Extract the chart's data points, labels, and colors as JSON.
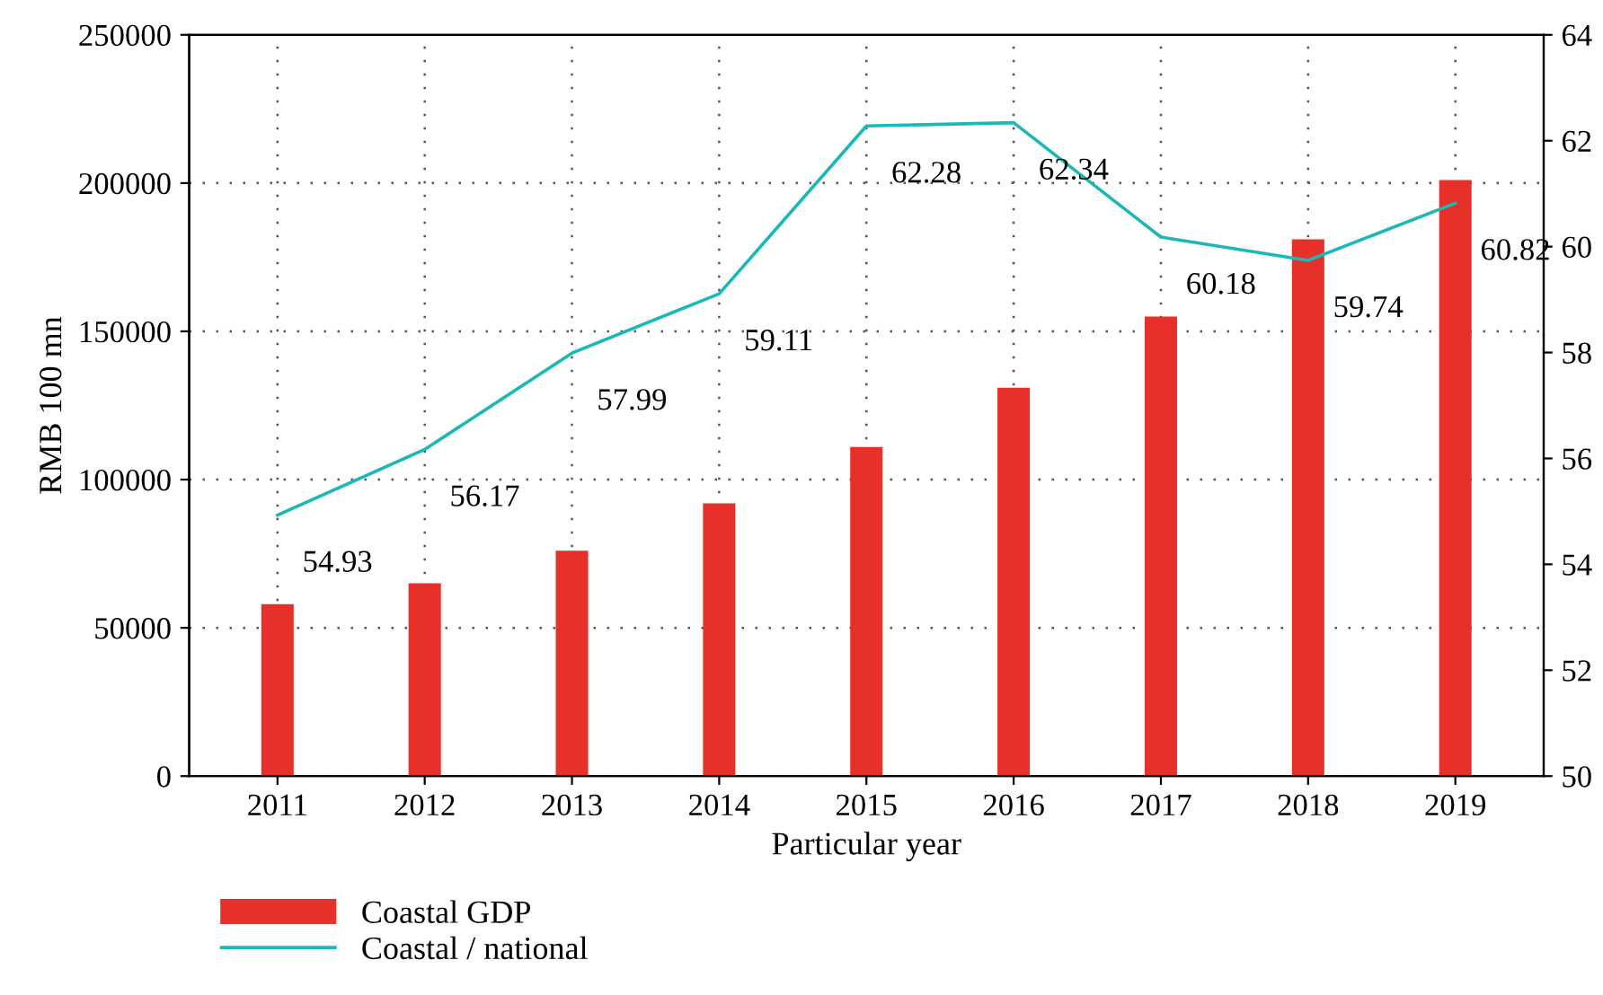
{
  "chart_data": {
    "type": "bar",
    "xlabel": "Particular year",
    "ylabel": "RMB 100 mn",
    "categories": [
      "2011",
      "2012",
      "2013",
      "2014",
      "2015",
      "2016",
      "2017",
      "2018",
      "2019"
    ],
    "series": [
      {
        "name": "Coastal GDP",
        "color": "#e8302a",
        "values": [
          58000,
          65000,
          76000,
          92000,
          111000,
          131000,
          155000,
          181000,
          201000
        ]
      },
      {
        "name": "Coastal / national",
        "type": "line",
        "axis": "y2",
        "color": "#1cb8b8",
        "values": [
          54.93,
          56.17,
          57.99,
          59.11,
          62.28,
          62.34,
          60.18,
          59.74,
          60.82
        ],
        "value_labels": [
          "54.93",
          "56.17",
          "57.99",
          "59.11",
          "62.28",
          "62.34",
          "60.18",
          "59.74",
          "60.82"
        ]
      }
    ],
    "ylim": [
      0,
      250000
    ],
    "yticks": [
      0,
      50000,
      100000,
      150000,
      200000,
      250000
    ],
    "y2lim": [
      50,
      64
    ],
    "y2ticks": [
      50,
      52,
      54,
      56,
      58,
      60,
      62,
      64
    ],
    "grid": true,
    "legend": "bottom left",
    "marker": "none",
    "line_style": "solid"
  }
}
